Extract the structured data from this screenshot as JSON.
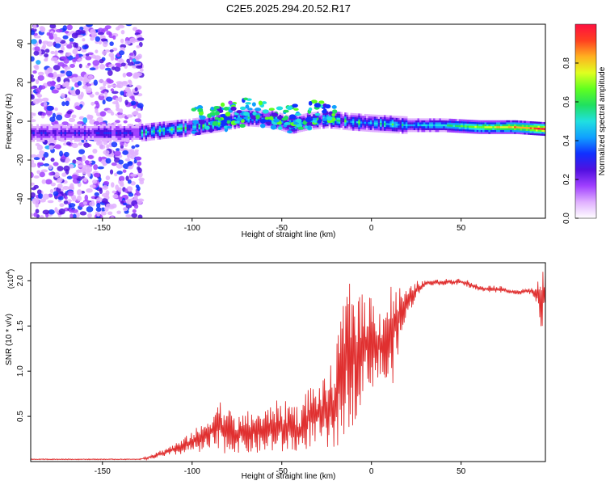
{
  "title": "C2E5.2025.294.20.52.R17",
  "chart_data": [
    {
      "type": "heatmap",
      "title": "C2E5.2025.294.20.52.R17",
      "xlabel": "Height of straight line (km)",
      "ylabel": "Frequency (Hz)",
      "xlim": [
        -190,
        97
      ],
      "ylim": [
        -50,
        50
      ],
      "x_ticks": [
        -150,
        -100,
        -50,
        0,
        50
      ],
      "y_ticks": [
        -40,
        -20,
        0,
        20,
        40
      ],
      "colorbar": {
        "label": "Normalized spectral amplitude",
        "range": [
          0,
          1
        ],
        "ticks": [
          0.0,
          0.2,
          0.4,
          0.6,
          0.8
        ],
        "colors": [
          "#ffffff",
          "#e0b0ff",
          "#a040ff",
          "#5010e0",
          "#1030ff",
          "#10a0ff",
          "#20e0e0",
          "#20e060",
          "#60ff20",
          "#e0ff20",
          "#ffb020",
          "#ff4020",
          "#ff1040"
        ]
      },
      "ridge": {
        "x": [
          -190,
          -170,
          -150,
          -130,
          -120,
          -100,
          -85,
          -70,
          -55,
          -45,
          -35,
          -25,
          -15,
          0,
          20,
          40,
          60,
          80,
          97
        ],
        "y": [
          -6,
          -6,
          -6,
          -6,
          -5,
          -3,
          -1,
          2,
          1,
          -2,
          0,
          1,
          0,
          -1,
          -2,
          -2,
          -3,
          -3,
          -4
        ]
      },
      "noise_region": {
        "x_range": [
          -190,
          -128
        ]
      }
    },
    {
      "type": "line",
      "xlabel": "Height of straight line (km)",
      "ylabel": "SNR (10 * v/v)",
      "y_multiplier": "(x10",
      "y_multiplier_exp": "4",
      "y_multiplier_close": ")",
      "xlim": [
        -190,
        97
      ],
      "ylim": [
        0,
        2.2
      ],
      "x_ticks": [
        -150,
        -100,
        -50,
        0,
        50
      ],
      "y_ticks": [
        0.5,
        1.0,
        1.5,
        2.0
      ],
      "series": [
        {
          "name": "SNR",
          "color": "#e03030",
          "x": [
            -190,
            -170,
            -150,
            -130,
            -125,
            -115,
            -105,
            -100,
            -95,
            -90,
            -85,
            -80,
            -75,
            -70,
            -65,
            -60,
            -55,
            -50,
            -45,
            -40,
            -35,
            -30,
            -25,
            -20,
            -15,
            -10,
            -5,
            0,
            5,
            10,
            15,
            20,
            25,
            30,
            40,
            50,
            55,
            60,
            70,
            80,
            90,
            95,
            97
          ],
          "upper": [
            0.03,
            0.03,
            0.03,
            0.03,
            0.06,
            0.15,
            0.25,
            0.35,
            0.4,
            0.55,
            0.7,
            0.6,
            0.5,
            0.55,
            0.6,
            0.55,
            0.7,
            0.65,
            0.7,
            0.6,
            0.85,
            0.85,
            0.95,
            1.2,
            1.9,
            2.05,
            1.85,
            1.9,
            1.7,
            2.0,
            1.95,
            1.9,
            2.0,
            2.0,
            2.02,
            2.03,
            2.0,
            1.95,
            1.95,
            1.9,
            1.92,
            2.1,
            2.15
          ],
          "lower": [
            0.02,
            0.02,
            0.02,
            0.02,
            0.02,
            0.05,
            0.08,
            0.1,
            0.08,
            0.1,
            0.1,
            0.08,
            0.1,
            0.08,
            0.08,
            0.08,
            0.1,
            0.08,
            0.1,
            0.08,
            0.15,
            0.2,
            0.1,
            0.1,
            0.3,
            0.4,
            0.7,
            0.8,
            0.9,
            0.65,
            1.2,
            1.6,
            1.8,
            1.95,
            1.95,
            1.95,
            1.92,
            1.88,
            1.87,
            1.85,
            1.85,
            1.45,
            1.8
          ]
        }
      ]
    }
  ]
}
